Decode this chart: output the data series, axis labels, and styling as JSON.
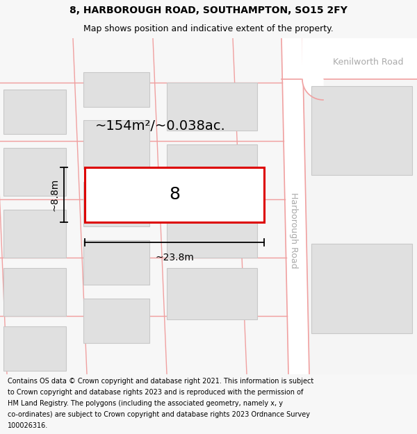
{
  "title": "8, HARBOROUGH ROAD, SOUTHAMPTON, SO15 2FY",
  "subtitle": "Map shows position and indicative extent of the property.",
  "footer_lines": [
    "Contains OS data © Crown copyright and database right 2021. This information is subject",
    "to Crown copyright and database rights 2023 and is reproduced with the permission of",
    "HM Land Registry. The polygons (including the associated geometry, namely x, y",
    "co-ordinates) are subject to Crown copyright and database rights 2023 Ordnance Survey",
    "100026316."
  ],
  "bg_color": "#f7f7f7",
  "map_bg": "#ffffff",
  "building_fill": "#e0e0e0",
  "building_edge": "#c8c8c8",
  "road_line_color": "#f0a0a0",
  "highlight_edge": "#dd0000",
  "highlight_fill": "#ffffff",
  "street_harborough": "Harborough Road",
  "street_kenilworth": "Kenilworth Road",
  "area_label": "~154m²/~0.038ac.",
  "property_label": "8",
  "dim_width_label": "~23.8m",
  "dim_height_label": "~8.8m",
  "title_fontsize": 10,
  "subtitle_fontsize": 9,
  "footer_fontsize": 7.0,
  "property_num_fontsize": 18,
  "area_fontsize": 14,
  "street_fontsize": 9
}
